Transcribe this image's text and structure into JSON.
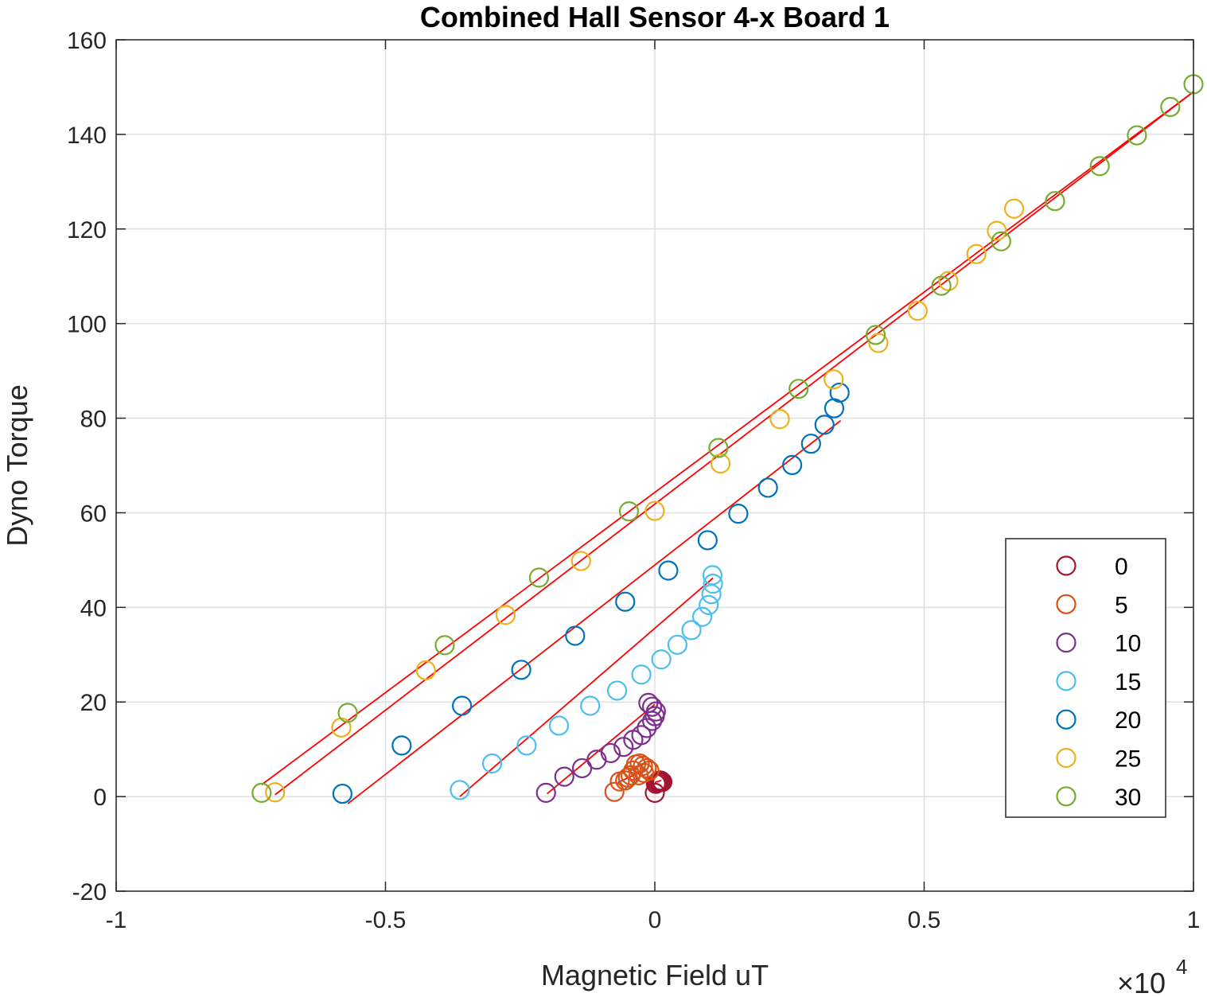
{
  "chart_data": {
    "type": "scatter",
    "title": "Combined Hall Sensor 4-x Board 1",
    "xlabel": "Magnetic Field uT",
    "ylabel": "Dyno Torque",
    "x_exponent_label": "×10",
    "x_exponent_power": "4",
    "xlim": [
      -1,
      1
    ],
    "ylim": [
      -20,
      160
    ],
    "x_ticks": [
      -1,
      -0.5,
      0,
      0.5,
      1
    ],
    "x_tick_labels": [
      "-1",
      "-0.5",
      "0",
      "0.5",
      "1"
    ],
    "y_ticks": [
      -20,
      0,
      20,
      40,
      60,
      80,
      100,
      120,
      140,
      160
    ],
    "y_tick_labels": [
      "-20",
      "0",
      "20",
      "40",
      "60",
      "80",
      "100",
      "120",
      "140",
      "160"
    ],
    "grid": true,
    "legend_position": "lower-right",
    "fit_line_color": "#ff0000",
    "series": [
      {
        "name": "0",
        "color": "#a2142f",
        "points": [
          [
            0.0,
            0.8
          ],
          [
            0.002,
            2.7
          ],
          [
            0.004,
            3.0
          ],
          [
            0.006,
            3.2
          ],
          [
            0.008,
            3.3
          ],
          [
            0.01,
            3.4
          ],
          [
            0.012,
            3.3
          ],
          [
            0.014,
            3.1
          ]
        ]
      },
      {
        "name": "5",
        "color": "#d95319",
        "points": [
          [
            -0.075,
            1.0
          ],
          [
            -0.065,
            3.2
          ],
          [
            -0.055,
            3.4
          ],
          [
            -0.05,
            4.0
          ],
          [
            -0.045,
            4.5
          ],
          [
            -0.04,
            5.5
          ],
          [
            -0.035,
            6.8
          ],
          [
            -0.028,
            7.0
          ],
          [
            -0.022,
            6.5
          ],
          [
            -0.015,
            6.0
          ],
          [
            -0.01,
            5.5
          ],
          [
            -0.02,
            5.0
          ],
          [
            -0.03,
            4.5
          ]
        ]
      },
      {
        "name": "10",
        "color": "#7e2f8e",
        "points": [
          [
            -0.202,
            0.8
          ],
          [
            -0.168,
            4.2
          ],
          [
            -0.135,
            6.0
          ],
          [
            -0.108,
            7.8
          ],
          [
            -0.082,
            9.2
          ],
          [
            -0.058,
            10.5
          ],
          [
            -0.04,
            12.0
          ],
          [
            -0.025,
            13.0
          ],
          [
            -0.015,
            14.5
          ],
          [
            -0.005,
            16.0
          ],
          [
            0.0,
            17.0
          ],
          [
            0.002,
            18.0
          ],
          [
            -0.005,
            19.0
          ],
          [
            -0.012,
            19.8
          ]
        ]
      },
      {
        "name": "15",
        "color": "#4dbeee",
        "points": [
          [
            -0.362,
            1.4
          ],
          [
            -0.302,
            7.0
          ],
          [
            -0.238,
            10.8
          ],
          [
            -0.178,
            15.0
          ],
          [
            -0.12,
            19.2
          ],
          [
            -0.07,
            22.4
          ],
          [
            -0.025,
            25.8
          ],
          [
            0.012,
            29.0
          ],
          [
            0.042,
            32.1
          ],
          [
            0.068,
            35.2
          ],
          [
            0.088,
            38.0
          ],
          [
            0.1,
            40.5
          ],
          [
            0.105,
            42.8
          ],
          [
            0.108,
            45.0
          ],
          [
            0.107,
            46.8
          ]
        ]
      },
      {
        "name": "20",
        "color": "#0072bd",
        "points": [
          [
            -0.58,
            0.6
          ],
          [
            -0.47,
            10.8
          ],
          [
            -0.358,
            19.2
          ],
          [
            -0.248,
            26.8
          ],
          [
            -0.148,
            34.0
          ],
          [
            -0.055,
            41.2
          ],
          [
            0.025,
            47.8
          ],
          [
            0.098,
            54.2
          ],
          [
            0.155,
            59.8
          ],
          [
            0.21,
            65.3
          ],
          [
            0.255,
            70.1
          ],
          [
            0.29,
            74.6
          ],
          [
            0.315,
            78.6
          ],
          [
            0.333,
            82.1
          ],
          [
            0.343,
            85.4
          ]
        ]
      },
      {
        "name": "25",
        "color": "#edb120",
        "points": [
          [
            -0.705,
            0.9
          ],
          [
            -0.582,
            14.6
          ],
          [
            -0.425,
            26.7
          ],
          [
            -0.277,
            38.4
          ],
          [
            -0.137,
            49.8
          ],
          [
            0.0,
            60.4
          ],
          [
            0.122,
            70.4
          ],
          [
            0.232,
            79.8
          ],
          [
            0.332,
            88.2
          ],
          [
            0.415,
            95.9
          ],
          [
            0.488,
            102.7
          ],
          [
            0.545,
            109.0
          ],
          [
            0.597,
            114.7
          ],
          [
            0.635,
            119.6
          ],
          [
            0.667,
            124.3
          ]
        ]
      },
      {
        "name": "30",
        "color": "#77ac30",
        "points": [
          [
            -0.73,
            0.8
          ],
          [
            -0.57,
            17.7
          ],
          [
            -0.39,
            32.0
          ],
          [
            -0.215,
            46.3
          ],
          [
            -0.048,
            60.3
          ],
          [
            0.118,
            73.7
          ],
          [
            0.267,
            86.2
          ],
          [
            0.41,
            97.6
          ],
          [
            0.532,
            108.0
          ],
          [
            0.643,
            117.4
          ],
          [
            0.743,
            125.9
          ],
          [
            0.826,
            133.3
          ],
          [
            0.895,
            139.8
          ],
          [
            0.957,
            145.8
          ],
          [
            1.0,
            150.6
          ]
        ]
      }
    ],
    "fit_lines": [
      {
        "x": [
          0.0,
          0.012
        ],
        "y": [
          3.0,
          3.4
        ]
      },
      {
        "x": [
          -0.068,
          -0.012
        ],
        "y": [
          3.0,
          6.0
        ]
      },
      {
        "x": [
          -0.2,
          0.0
        ],
        "y": [
          0.6,
          19.5
        ]
      },
      {
        "x": [
          -0.362,
          0.108
        ],
        "y": [
          0.0,
          46.2
        ]
      },
      {
        "x": [
          -0.57,
          0.345
        ],
        "y": [
          -1.5,
          79.5
        ]
      },
      {
        "x": [
          -0.705,
          1.0
        ],
        "y": [
          0.4,
          149.0
        ]
      },
      {
        "x": [
          -0.73,
          1.0
        ],
        "y": [
          2.5,
          149.0
        ]
      }
    ]
  }
}
